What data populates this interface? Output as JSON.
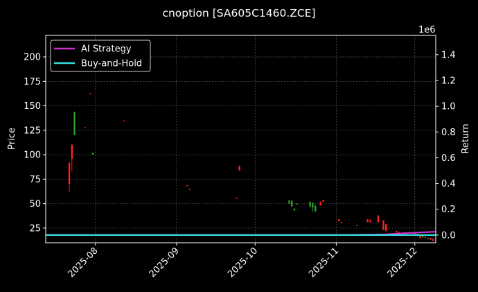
{
  "chart_data": {
    "type": "candlestick",
    "title": "cnoption [SA605C1460.ZCE]",
    "ylabel_left": "Price",
    "ylabel_right": "Return",
    "right_axis_offset_label": "1e6",
    "ylim_left": [
      10,
      222
    ],
    "yticks_left": [
      25,
      50,
      75,
      100,
      125,
      150,
      175,
      200
    ],
    "ylim_right": [
      -0.06,
      1.55
    ],
    "yticks_right": [
      "0.0",
      "0.2",
      "0.4",
      "0.6",
      "0.8",
      "1.0",
      "1.2",
      "1.4"
    ],
    "x_dates": [
      "2025-07-13",
      "2025-12-09"
    ],
    "xticks": [
      {
        "label": "2025-08",
        "date": "2025-08-01"
      },
      {
        "label": "2025-09",
        "date": "2025-09-01"
      },
      {
        "label": "2025-10",
        "date": "2025-10-01"
      },
      {
        "label": "2025-11",
        "date": "2025-11-01"
      },
      {
        "label": "2025-12",
        "date": "2025-12-01"
      }
    ],
    "grid": true,
    "legend_position": "top-left",
    "colors": {
      "up": "#2ca02c",
      "down": "#ff2020",
      "ai": "#cc33cc",
      "bh": "#33dddd",
      "grid": "#555555"
    },
    "legend": [
      {
        "name": "AI Strategy",
        "color": "#cc33cc"
      },
      {
        "name": "Buy-and-Hold",
        "color": "#33dddd"
      }
    ],
    "candles": [
      {
        "date": "2025-07-22",
        "open": 92,
        "close": 70,
        "high": 92,
        "low": 62
      },
      {
        "date": "2025-07-23",
        "open": 110,
        "close": 96,
        "high": 111,
        "low": 83
      },
      {
        "date": "2025-07-24",
        "open": 120,
        "close": 144,
        "high": 144,
        "low": 120
      },
      {
        "date": "2025-07-28",
        "open": 128,
        "close": 127,
        "high": 128,
        "low": 127
      },
      {
        "date": "2025-07-30",
        "open": 163,
        "close": 162,
        "high": 163,
        "low": 162
      },
      {
        "date": "2025-07-31",
        "open": 100,
        "close": 102,
        "high": 102,
        "low": 100
      },
      {
        "date": "2025-08-12",
        "open": 135,
        "close": 134,
        "high": 135,
        "low": 134
      },
      {
        "date": "2025-09-05",
        "open": 69,
        "close": 68,
        "high": 69,
        "low": 68
      },
      {
        "date": "2025-09-06",
        "open": 65,
        "close": 64,
        "high": 65,
        "low": 64
      },
      {
        "date": "2025-09-24",
        "open": 56,
        "close": 55,
        "high": 56,
        "low": 55
      },
      {
        "date": "2025-09-25",
        "open": 88,
        "close": 84,
        "high": 89,
        "low": 84
      },
      {
        "date": "2025-10-14",
        "open": 50,
        "close": 53,
        "high": 54,
        "low": 50
      },
      {
        "date": "2025-10-15",
        "open": 47,
        "close": 53,
        "high": 53,
        "low": 47
      },
      {
        "date": "2025-10-16",
        "open": 43,
        "close": 45,
        "high": 45,
        "low": 43
      },
      {
        "date": "2025-10-17",
        "open": 49,
        "close": 50,
        "high": 50,
        "low": 49
      },
      {
        "date": "2025-10-22",
        "open": 47,
        "close": 52,
        "high": 52,
        "low": 46
      },
      {
        "date": "2025-10-23",
        "open": 46,
        "close": 51,
        "high": 51,
        "low": 42
      },
      {
        "date": "2025-10-24",
        "open": 42,
        "close": 48,
        "high": 48,
        "low": 42
      },
      {
        "date": "2025-10-26",
        "open": 52,
        "close": 48,
        "high": 52,
        "low": 48
      },
      {
        "date": "2025-10-27",
        "open": 54,
        "close": 52,
        "high": 54,
        "low": 52
      },
      {
        "date": "2025-11-02",
        "open": 34,
        "close": 32,
        "high": 34,
        "low": 32
      },
      {
        "date": "2025-11-03",
        "open": 31,
        "close": 30,
        "high": 31,
        "low": 30
      },
      {
        "date": "2025-11-09",
        "open": 28,
        "close": 27,
        "high": 28,
        "low": 27
      },
      {
        "date": "2025-11-13",
        "open": 34,
        "close": 31,
        "high": 34,
        "low": 31
      },
      {
        "date": "2025-11-14",
        "open": 33,
        "close": 31,
        "high": 34,
        "low": 31
      },
      {
        "date": "2025-11-17",
        "open": 38,
        "close": 31,
        "high": 38,
        "low": 31
      },
      {
        "date": "2025-11-19",
        "open": 33,
        "close": 23,
        "high": 33,
        "low": 23
      },
      {
        "date": "2025-11-20",
        "open": 29,
        "close": 22,
        "high": 29,
        "low": 22
      },
      {
        "date": "2025-11-24",
        "open": 22,
        "close": 21,
        "high": 22,
        "low": 20
      },
      {
        "date": "2025-11-25",
        "open": 21,
        "close": 20,
        "high": 21,
        "low": 19
      },
      {
        "date": "2025-11-27",
        "open": 21,
        "close": 20,
        "high": 21,
        "low": 19
      },
      {
        "date": "2025-11-28",
        "open": 19,
        "close": 18,
        "high": 20,
        "low": 18
      },
      {
        "date": "2025-12-01",
        "open": 20,
        "close": 19,
        "high": 21,
        "low": 18
      },
      {
        "date": "2025-12-02",
        "open": 19,
        "close": 18,
        "high": 19,
        "low": 17
      },
      {
        "date": "2025-12-03",
        "open": 17,
        "close": 15,
        "high": 17,
        "low": 14
      },
      {
        "date": "2025-12-04",
        "open": 16,
        "close": 17,
        "high": 17,
        "low": 15
      },
      {
        "date": "2025-12-05",
        "open": 16,
        "close": 15,
        "high": 16,
        "low": 15
      },
      {
        "date": "2025-12-06",
        "open": 14,
        "close": 15,
        "high": 15,
        "low": 14
      },
      {
        "date": "2025-12-07",
        "open": 15,
        "close": 13,
        "high": 15,
        "low": 13
      },
      {
        "date": "2025-12-08",
        "open": 14,
        "close": 12,
        "high": 14,
        "low": 12
      }
    ],
    "series": [
      {
        "name": "AI Strategy",
        "axis": "right",
        "color": "#cc33cc",
        "points": [
          [
            "2025-07-13",
            0
          ],
          [
            "2025-10-31",
            0
          ],
          [
            "2025-11-20",
            0.005
          ],
          [
            "2025-11-24",
            0.01
          ],
          [
            "2025-11-28",
            0.015
          ],
          [
            "2025-12-03",
            0.02
          ],
          [
            "2025-12-09",
            0.025
          ]
        ]
      },
      {
        "name": "Buy-and-Hold",
        "axis": "right",
        "color": "#33dddd",
        "points": [
          [
            "2025-07-13",
            0
          ],
          [
            "2025-12-09",
            0
          ]
        ]
      }
    ]
  }
}
